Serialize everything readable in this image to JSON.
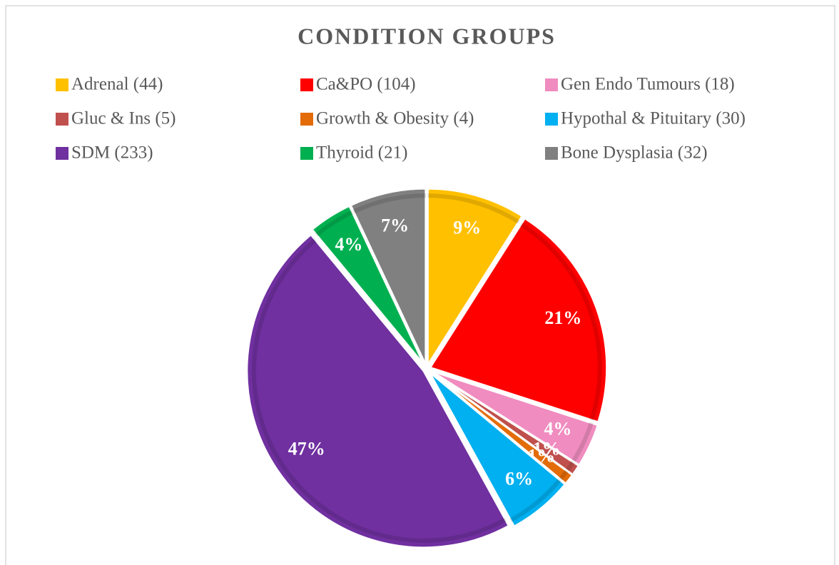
{
  "chart_data": {
    "type": "pie",
    "title": "CONDITION GROUPS",
    "categories": [
      "Adrenal (44)",
      "Ca&PO (104)",
      "Gen Endo Tumours (18)",
      "Gluc & Ins (5)",
      "Growth & Obesity (4)",
      "Hypothal & Pituitary (30)",
      "SDM (233)",
      "Thyroid (21)",
      "Bone Dysplasia (32)"
    ],
    "values": [
      9,
      21,
      4,
      1,
      1,
      6,
      47,
      4,
      7
    ],
    "value_labels": [
      "9%",
      "21%",
      "4%",
      "1%",
      "1%",
      "6%",
      "47%",
      "4%",
      "7%"
    ],
    "colors": [
      "#FFC000",
      "#FF0000",
      "#F08CC0",
      "#C0504D",
      "#E36C09",
      "#00B0F0",
      "#7030A0",
      "#00B050",
      "#808080"
    ],
    "legend": "top"
  }
}
